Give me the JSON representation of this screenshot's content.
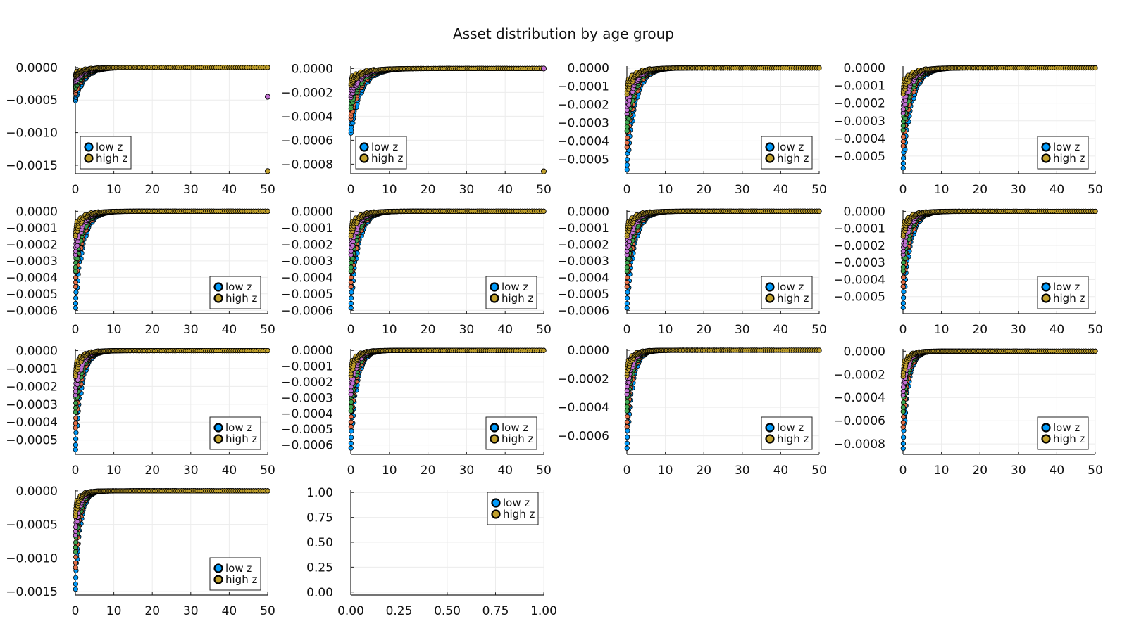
{
  "title": "Asset distribution by age group",
  "colors": {
    "low_z": "#009AFA",
    "high_z": "#C0A02C",
    "mid1": "#E26F46",
    "mid2": "#3DA44D",
    "mid3": "#C271D2",
    "grid": "#ececec",
    "axis": "#222222"
  },
  "chart_data": [
    {
      "panel": 1,
      "type": "scatter",
      "x_ticks": [
        "0",
        "10",
        "20",
        "30",
        "40",
        "50"
      ],
      "xlim": [
        0,
        50
      ],
      "y_ticks": [
        "0.0000",
        "−0.0005",
        "−0.0010",
        "−0.0015"
      ],
      "y_tick_values": [
        0,
        -0.0005,
        -0.001,
        -0.0015
      ],
      "ylim": [
        -0.00163,
        2e-05
      ],
      "min_value": -0.00052,
      "decay": 2.5,
      "outliers": [
        [
          50,
          -0.00045,
          "mid3"
        ],
        [
          50,
          -0.00159,
          "high_z"
        ]
      ],
      "legend": {
        "position": "bottom-left",
        "entries": [
          "low z",
          "high z"
        ]
      }
    },
    {
      "panel": 2,
      "type": "scatter",
      "x_ticks": [
        "0",
        "10",
        "20",
        "30",
        "40",
        "50"
      ],
      "xlim": [
        0,
        50
      ],
      "y_ticks": [
        "0.0000",
        "−0.0002",
        "−0.0004",
        "−0.0006",
        "−0.0008"
      ],
      "y_tick_values": [
        0,
        -0.0002,
        -0.0004,
        -0.0006,
        -0.0008
      ],
      "ylim": [
        -0.00088,
        2e-05
      ],
      "min_value": -0.00055,
      "decay": 2.8,
      "outliers": [
        [
          50,
          0,
          "mid3"
        ],
        [
          50,
          -0.00086,
          "high_z"
        ]
      ],
      "legend": {
        "position": "bottom-left",
        "entries": [
          "low z",
          "high z"
        ]
      }
    },
    {
      "panel": 3,
      "type": "scatter",
      "x_ticks": [
        "0",
        "10",
        "20",
        "30",
        "40",
        "50"
      ],
      "xlim": [
        0,
        50
      ],
      "y_ticks": [
        "0.0000",
        "−0.0001",
        "−0.0002",
        "−0.0003",
        "−0.0004",
        "−0.0005"
      ],
      "y_tick_values": [
        0,
        -0.0001,
        -0.0002,
        -0.0003,
        -0.0004,
        -0.0005
      ],
      "ylim": [
        -0.00058,
        1e-05
      ],
      "min_value": -0.00057,
      "decay": 2.2,
      "outliers": [],
      "legend": {
        "position": "bottom-right",
        "entries": [
          "low z",
          "high z"
        ]
      }
    },
    {
      "panel": 4,
      "type": "scatter",
      "x_ticks": [
        "0",
        "10",
        "20",
        "30",
        "40",
        "50"
      ],
      "xlim": [
        0,
        50
      ],
      "y_ticks": [
        "0.0000",
        "−0.0001",
        "−0.0002",
        "−0.0003",
        "−0.0004",
        "−0.0005"
      ],
      "y_tick_values": [
        0,
        -0.0001,
        -0.0002,
        -0.0003,
        -0.0004,
        -0.0005
      ],
      "ylim": [
        -0.0006,
        1e-05
      ],
      "min_value": -0.00058,
      "decay": 2.3,
      "outliers": [],
      "legend": {
        "position": "bottom-right",
        "entries": [
          "low z",
          "high z"
        ]
      }
    },
    {
      "panel": 5,
      "type": "scatter",
      "x_ticks": [
        "0",
        "10",
        "20",
        "30",
        "40",
        "50"
      ],
      "xlim": [
        0,
        50
      ],
      "y_ticks": [
        "0.0000",
        "−0.0001",
        "−0.0002",
        "−0.0003",
        "−0.0004",
        "−0.0005",
        "−0.0006"
      ],
      "y_tick_values": [
        0,
        -0.0001,
        -0.0002,
        -0.0003,
        -0.0004,
        -0.0005,
        -0.0006
      ],
      "ylim": [
        -0.00062,
        1e-05
      ],
      "min_value": -0.0006,
      "decay": 2.0,
      "outliers": [],
      "legend": {
        "position": "bottom-right",
        "entries": [
          "low z",
          "high z"
        ]
      }
    },
    {
      "panel": 6,
      "type": "scatter",
      "x_ticks": [
        "0",
        "10",
        "20",
        "30",
        "40",
        "50"
      ],
      "xlim": [
        0,
        50
      ],
      "y_ticks": [
        "0.0000",
        "−0.0001",
        "−0.0002",
        "−0.0003",
        "−0.0004",
        "−0.0005",
        "−0.0006"
      ],
      "y_tick_values": [
        0,
        -0.0001,
        -0.0002,
        -0.0003,
        -0.0004,
        -0.0005,
        -0.0006
      ],
      "ylim": [
        -0.00062,
        1e-05
      ],
      "min_value": -0.0006,
      "decay": 2.0,
      "outliers": [],
      "legend": {
        "position": "bottom-right",
        "entries": [
          "low z",
          "high z"
        ]
      }
    },
    {
      "panel": 7,
      "type": "scatter",
      "x_ticks": [
        "0",
        "10",
        "20",
        "30",
        "40",
        "50"
      ],
      "xlim": [
        0,
        50
      ],
      "y_ticks": [
        "0.0000",
        "−0.0001",
        "−0.0002",
        "−0.0003",
        "−0.0004",
        "−0.0005",
        "−0.0006"
      ],
      "y_tick_values": [
        0,
        -0.0001,
        -0.0002,
        -0.0003,
        -0.0004,
        -0.0005,
        -0.0006
      ],
      "ylim": [
        -0.00062,
        1e-05
      ],
      "min_value": -0.0006,
      "decay": 2.0,
      "outliers": [],
      "legend": {
        "position": "bottom-right",
        "entries": [
          "low z",
          "high z"
        ]
      }
    },
    {
      "panel": 8,
      "type": "scatter",
      "x_ticks": [
        "0",
        "10",
        "20",
        "30",
        "40",
        "50"
      ],
      "xlim": [
        0,
        50
      ],
      "y_ticks": [
        "0.0000",
        "−0.0001",
        "−0.0002",
        "−0.0003",
        "−0.0004",
        "−0.0005"
      ],
      "y_tick_values": [
        0,
        -0.0001,
        -0.0002,
        -0.0003,
        -0.0004,
        -0.0005
      ],
      "ylim": [
        -0.0006,
        1e-05
      ],
      "min_value": -0.00058,
      "decay": 1.9,
      "outliers": [],
      "legend": {
        "position": "bottom-right",
        "entries": [
          "low z",
          "high z"
        ]
      }
    },
    {
      "panel": 9,
      "type": "scatter",
      "x_ticks": [
        "0",
        "10",
        "20",
        "30",
        "40",
        "50"
      ],
      "xlim": [
        0,
        50
      ],
      "y_ticks": [
        "0.0000",
        "−0.0001",
        "−0.0002",
        "−0.0003",
        "−0.0004",
        "−0.0005"
      ],
      "y_tick_values": [
        0,
        -0.0001,
        -0.0002,
        -0.0003,
        -0.0004,
        -0.0005
      ],
      "ylim": [
        -0.00058,
        1e-05
      ],
      "min_value": -0.00057,
      "decay": 1.7,
      "outliers": [],
      "legend": {
        "position": "bottom-right",
        "entries": [
          "low z",
          "high z"
        ]
      }
    },
    {
      "panel": 10,
      "type": "scatter",
      "x_ticks": [
        "0",
        "10",
        "20",
        "30",
        "40",
        "50"
      ],
      "xlim": [
        0,
        50
      ],
      "y_ticks": [
        "0.0000",
        "−0.0001",
        "−0.0002",
        "−0.0003",
        "−0.0004",
        "−0.0005",
        "−0.0006"
      ],
      "y_tick_values": [
        0,
        -0.0001,
        -0.0002,
        -0.0003,
        -0.0004,
        -0.0005,
        -0.0006
      ],
      "ylim": [
        -0.00066,
        1e-05
      ],
      "min_value": -0.00064,
      "decay": 1.6,
      "outliers": [],
      "legend": {
        "position": "bottom-right",
        "entries": [
          "low z",
          "high z"
        ]
      }
    },
    {
      "panel": 11,
      "type": "scatter",
      "x_ticks": [
        "0",
        "10",
        "20",
        "30",
        "40",
        "50"
      ],
      "xlim": [
        0,
        50
      ],
      "y_ticks": [
        "0.0000",
        "−0.0002",
        "−0.0004",
        "−0.0006"
      ],
      "y_tick_values": [
        0,
        -0.0002,
        -0.0004,
        -0.0006
      ],
      "ylim": [
        -0.00073,
        1e-05
      ],
      "min_value": -0.00071,
      "decay": 1.5,
      "outliers": [],
      "legend": {
        "position": "bottom-right",
        "entries": [
          "low z",
          "high z"
        ]
      }
    },
    {
      "panel": 12,
      "type": "scatter",
      "x_ticks": [
        "0",
        "10",
        "20",
        "30",
        "40",
        "50"
      ],
      "xlim": [
        0,
        50
      ],
      "y_ticks": [
        "0.0000",
        "−0.0002",
        "−0.0004",
        "−0.0006",
        "−0.0008"
      ],
      "y_tick_values": [
        0,
        -0.0002,
        -0.0004,
        -0.0006,
        -0.0008
      ],
      "ylim": [
        -0.00089,
        2e-05
      ],
      "min_value": -0.00087,
      "decay": 1.4,
      "outliers": [],
      "legend": {
        "position": "bottom-right",
        "entries": [
          "low z",
          "high z"
        ]
      }
    },
    {
      "panel": 13,
      "type": "scatter",
      "x_ticks": [
        "0",
        "10",
        "20",
        "30",
        "40",
        "50"
      ],
      "xlim": [
        0,
        50
      ],
      "y_ticks": [
        "0.0000",
        "−0.0005",
        "−0.0010",
        "−0.0015"
      ],
      "y_tick_values": [
        0,
        -0.0005,
        -0.001,
        -0.0015
      ],
      "ylim": [
        -0.00155,
        2e-05
      ],
      "min_value": -0.00152,
      "decay": 1.3,
      "outliers": [],
      "legend": {
        "position": "bottom-right",
        "entries": [
          "low z",
          "high z"
        ]
      }
    },
    {
      "panel": 14,
      "type": "scatter",
      "empty": true,
      "x_ticks": [
        "0.00",
        "0.25",
        "0.50",
        "0.75",
        "1.00"
      ],
      "xlim": [
        0,
        1
      ],
      "y_ticks": [
        "1.00",
        "0.75",
        "0.50",
        "0.25",
        "0.00"
      ],
      "y_tick_values": [
        1,
        0.75,
        0.5,
        0.25,
        0
      ],
      "ylim": [
        -0.03,
        1.03
      ],
      "outliers": [],
      "legend": {
        "position": "top-right",
        "entries": [
          "low z",
          "high z"
        ]
      }
    }
  ]
}
